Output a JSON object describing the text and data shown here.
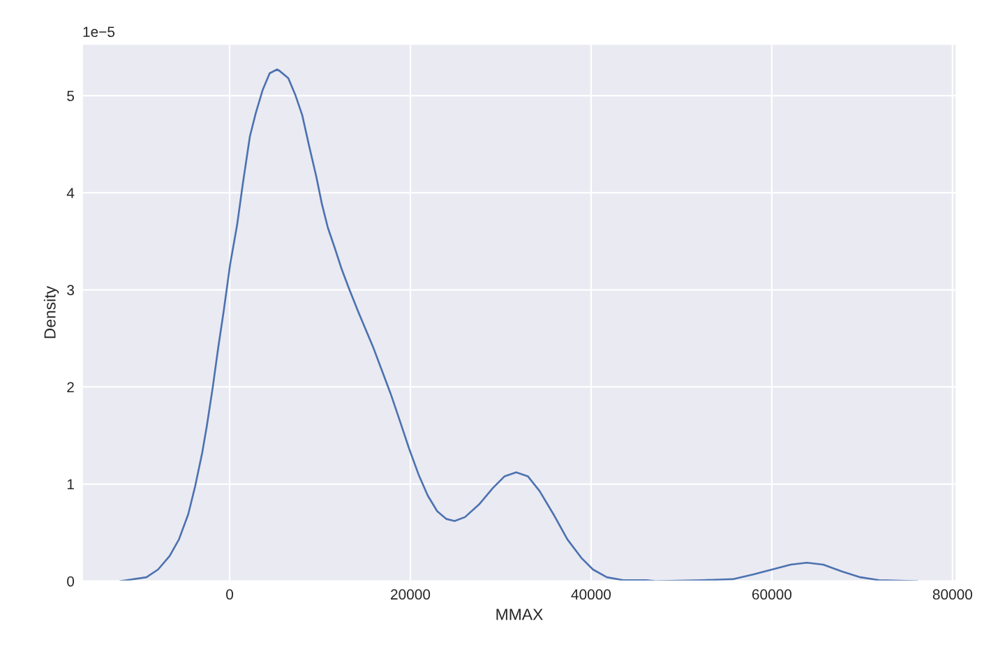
{
  "chart_data": {
    "type": "line",
    "xlabel": "MMAX",
    "ylabel": "Density",
    "annotations": [
      "1e−5"
    ],
    "x": [
      -12150,
      -9210,
      -7920,
      -6640,
      -5610,
      -4580,
      -3810,
      -3040,
      -2520,
      -1880,
      -1240,
      -660,
      50,
      830,
      1470,
      2240,
      2890,
      3660,
      4430,
      5250,
      5460,
      6490,
      7260,
      8030,
      8800,
      9580,
      10220,
      10870,
      11640,
      12410,
      13180,
      14210,
      15880,
      17820,
      18840,
      19880,
      20900,
      21930,
      22970,
      23990,
      24900,
      26050,
      27600,
      29140,
      30430,
      31710,
      33000,
      34290,
      35830,
      37380,
      38920,
      40210,
      41750,
      43550,
      46130,
      47160,
      52310,
      55650,
      57970,
      60030,
      62090,
      63890,
      65690,
      67750,
      69810,
      71870,
      76120
    ],
    "series": [
      {
        "color": "#4c72b0",
        "values": [
          0,
          0.04,
          0.12,
          0.26,
          0.43,
          0.69,
          0.98,
          1.32,
          1.6,
          1.99,
          2.42,
          2.78,
          3.26,
          3.67,
          4.1,
          4.58,
          4.82,
          5.06,
          5.23,
          5.27,
          5.26,
          5.18,
          5.01,
          4.8,
          4.48,
          4.17,
          3.88,
          3.64,
          3.43,
          3.21,
          3.02,
          2.78,
          2.41,
          1.93,
          1.65,
          1.36,
          1.1,
          0.88,
          0.72,
          0.64,
          0.62,
          0.66,
          0.79,
          0.96,
          1.08,
          1.12,
          1.08,
          0.93,
          0.69,
          0.43,
          0.24,
          0.12,
          0.04,
          0.01,
          0.01,
          0,
          0.01,
          0.02,
          0.07,
          0.12,
          0.17,
          0.19,
          0.17,
          0.1,
          0.04,
          0.01,
          0
        ]
      }
    ],
    "xlim": [
      -16300,
      80400
    ],
    "ylim": [
      0,
      5.53
    ],
    "xticks": [
      0,
      20000,
      40000,
      60000,
      80000
    ],
    "yticks": [
      0,
      1,
      2,
      3,
      4,
      5
    ],
    "grid": true
  }
}
